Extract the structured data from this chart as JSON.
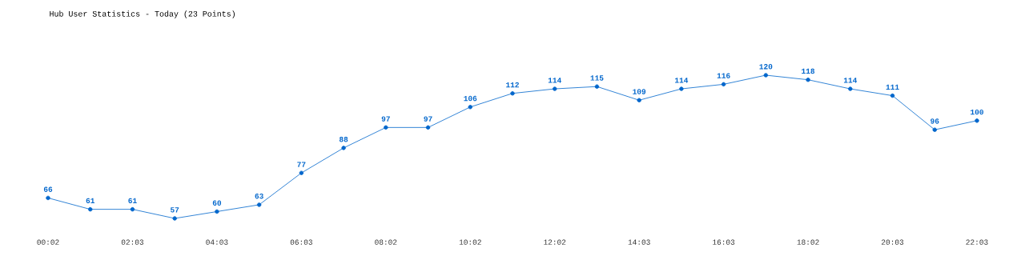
{
  "chart_data": {
    "type": "line",
    "title": "Hub User Statistics - Today (23 Points)",
    "categories": [
      "00:02",
      null,
      "02:03",
      null,
      "04:03",
      null,
      "06:03",
      null,
      "08:02",
      null,
      "10:02",
      null,
      "12:02",
      null,
      "14:03",
      null,
      "16:03",
      null,
      "18:02",
      null,
      "20:03",
      null,
      "22:03"
    ],
    "series": [
      {
        "color": "#0066cc",
        "values": [
          66,
          61,
          61,
          57,
          60,
          63,
          77,
          88,
          97,
          97,
          106,
          112,
          114,
          115,
          109,
          114,
          116,
          120,
          118,
          114,
          111,
          96,
          100
        ]
      }
    ],
    "tick_labels": "x",
    "data_labels": true,
    "marker": "circle",
    "line_style": "solid",
    "grid": false
  }
}
